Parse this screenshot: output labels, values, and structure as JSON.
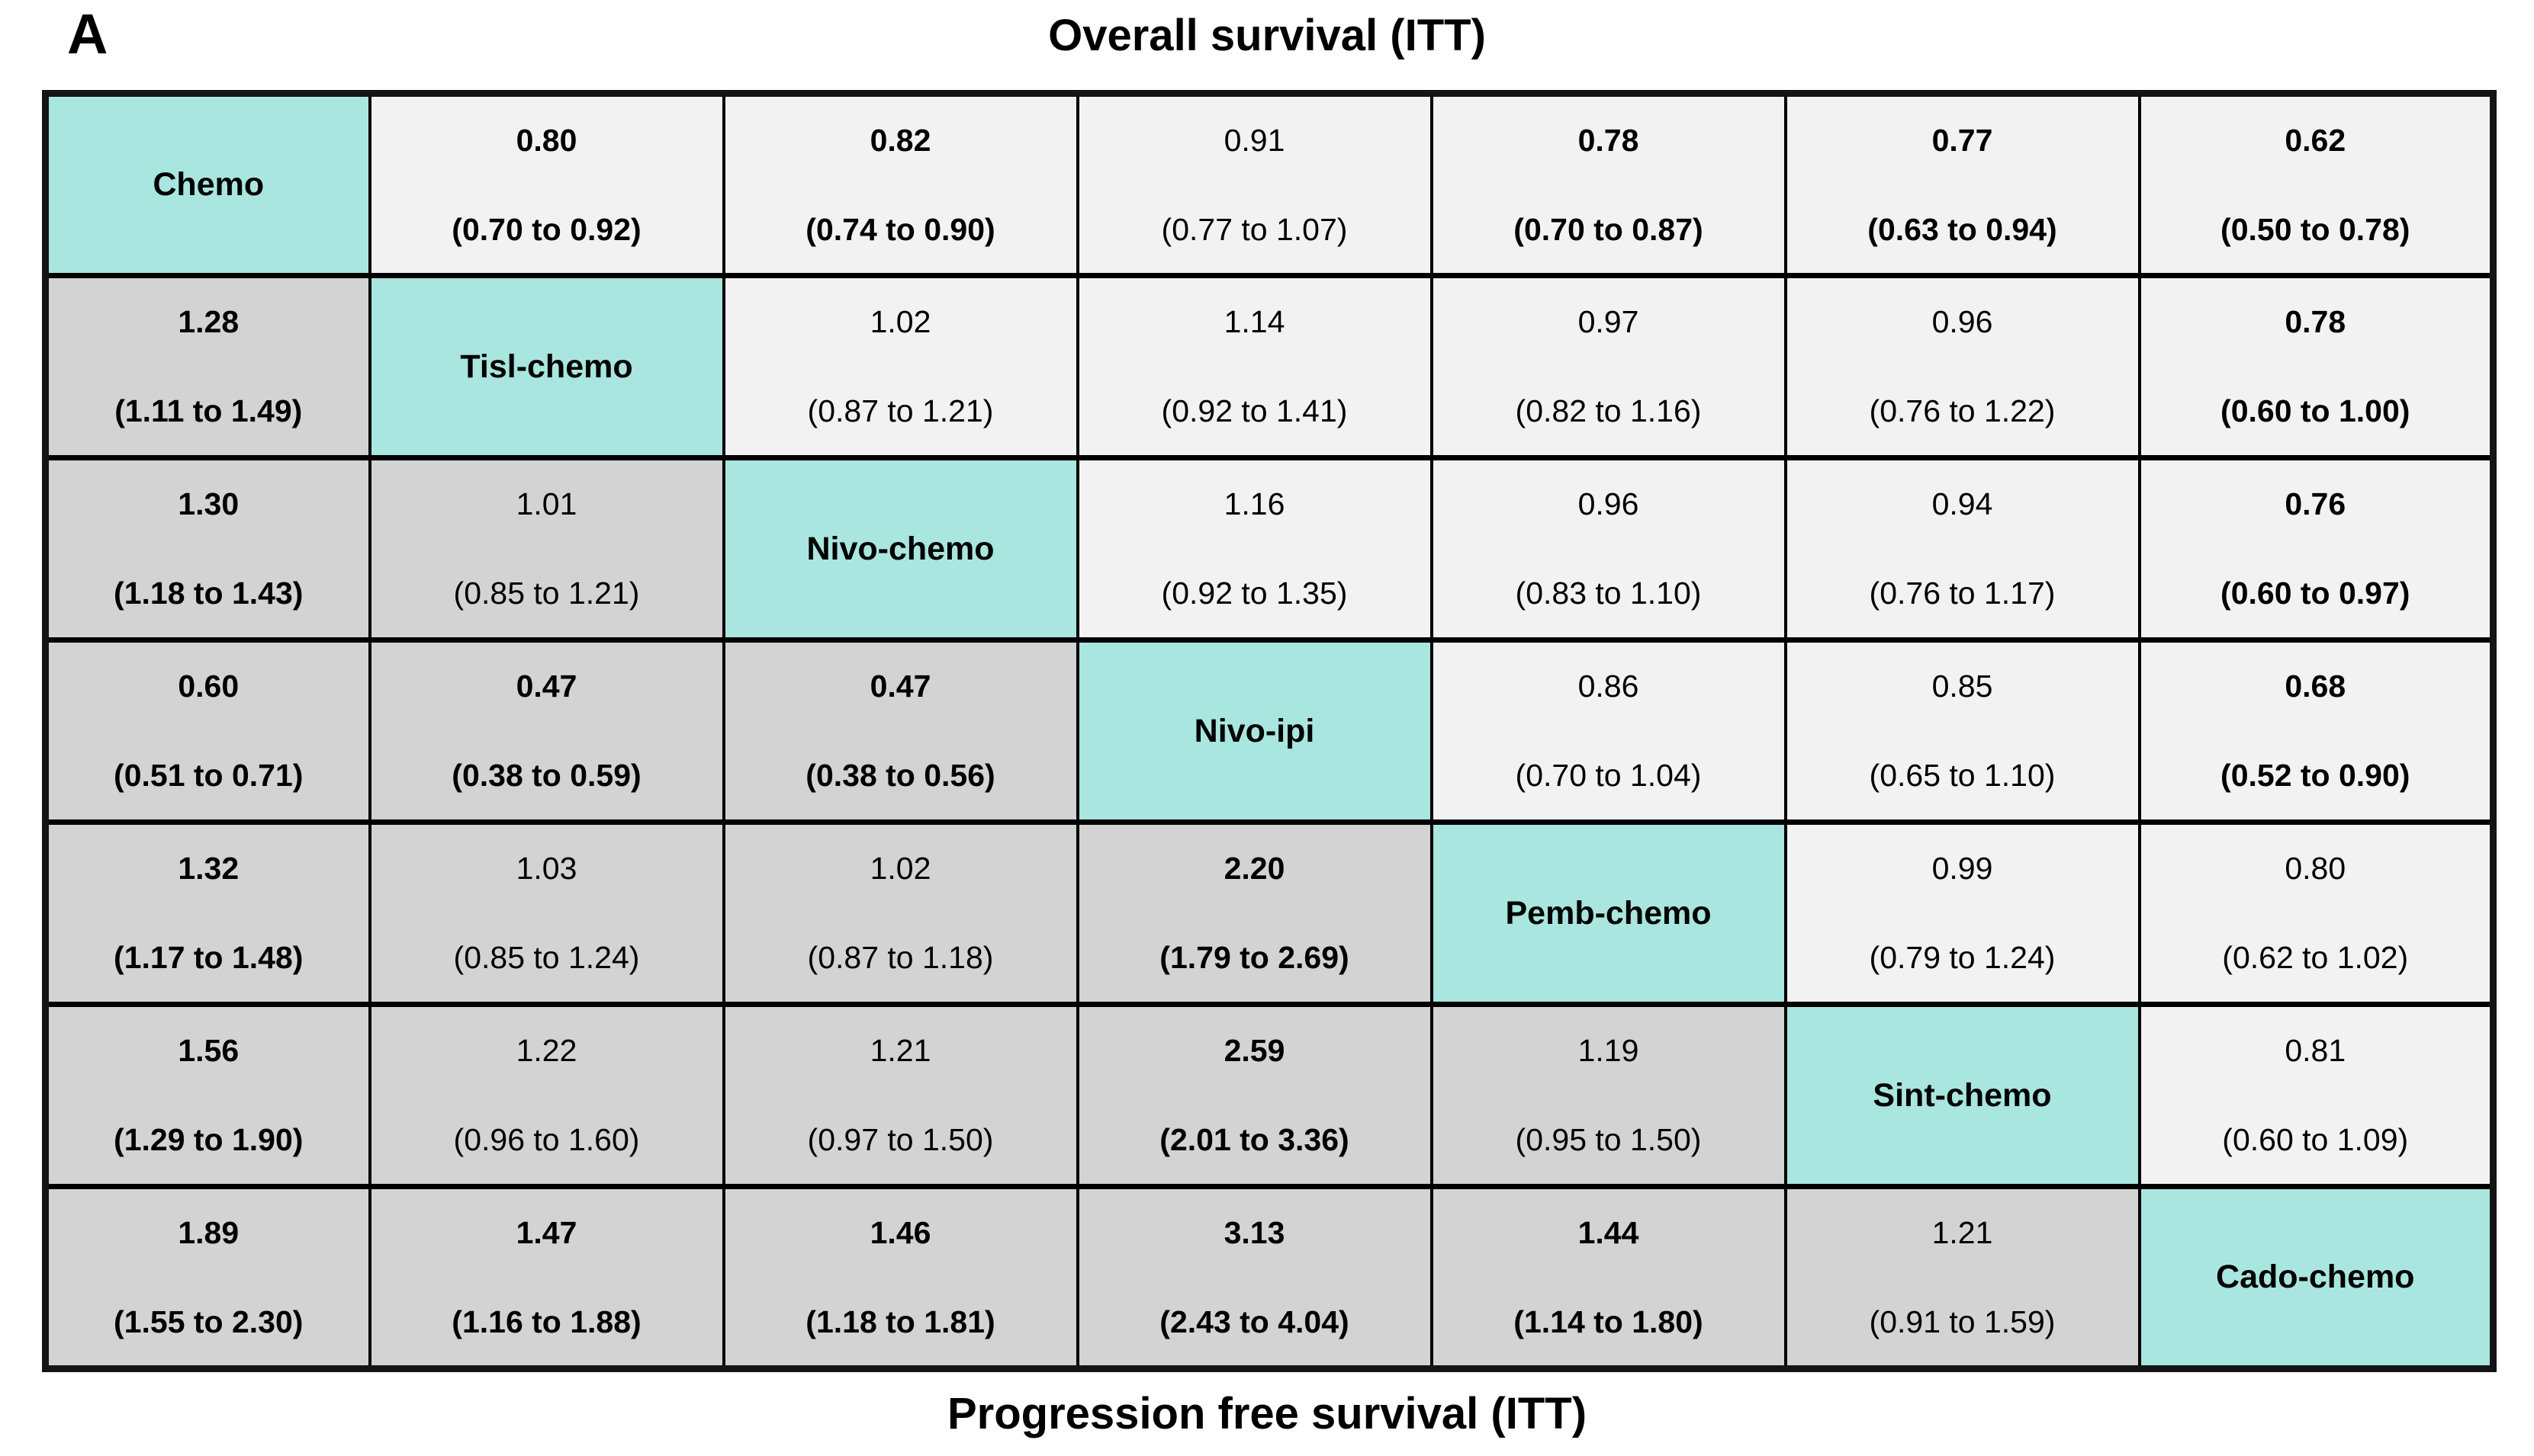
{
  "panel_label": "A",
  "titles": {
    "top": "Overall survival (ITT)",
    "bottom": "Progression free survival (ITT)"
  },
  "colors": {
    "diagonal_fill": "#a8e6df",
    "upper_triangle_fill": "#f2f2f2",
    "lower_triangle_fill": "#d3d3d3",
    "border": "#000000"
  },
  "chart_data": {
    "type": "table",
    "title": "Overall survival (ITT)",
    "upper_triangle_label": "Overall survival (ITT)",
    "lower_triangle_label": "Progression free survival (ITT)",
    "treatments": [
      "Chemo",
      "Tisl-chemo",
      "Nivo-chemo",
      "Nivo-ipi",
      "Pemb-chemo",
      "Sint-chemo",
      "Cado-chemo"
    ],
    "matrix": [
      [
        {
          "treatment": "Chemo"
        },
        {
          "hr": "0.80",
          "ci": "(0.70 to 0.92)",
          "significant": true
        },
        {
          "hr": "0.82",
          "ci": "(0.74 to 0.90)",
          "significant": true
        },
        {
          "hr": "0.91",
          "ci": "(0.77 to 1.07)",
          "significant": false
        },
        {
          "hr": "0.78",
          "ci": "(0.70 to 0.87)",
          "significant": true
        },
        {
          "hr": "0.77",
          "ci": "(0.63 to 0.94)",
          "significant": true
        },
        {
          "hr": "0.62",
          "ci": "(0.50 to 0.78)",
          "significant": true
        }
      ],
      [
        {
          "hr": "1.28",
          "ci": "(1.11 to 1.49)",
          "significant": true
        },
        {
          "treatment": "Tisl-chemo"
        },
        {
          "hr": "1.02",
          "ci": "(0.87 to 1.21)",
          "significant": false
        },
        {
          "hr": "1.14",
          "ci": "(0.92 to 1.41)",
          "significant": false
        },
        {
          "hr": "0.97",
          "ci": "(0.82 to 1.16)",
          "significant": false
        },
        {
          "hr": "0.96",
          "ci": "(0.76 to 1.22)",
          "significant": false
        },
        {
          "hr": "0.78",
          "ci": "(0.60 to 1.00)",
          "significant": true
        }
      ],
      [
        {
          "hr": "1.30",
          "ci": "(1.18 to 1.43)",
          "significant": true
        },
        {
          "hr": "1.01",
          "ci": "(0.85 to 1.21)",
          "significant": false
        },
        {
          "treatment": "Nivo-chemo"
        },
        {
          "hr": "1.16",
          "ci": "(0.92 to 1.35)",
          "significant": false
        },
        {
          "hr": "0.96",
          "ci": "(0.83 to 1.10)",
          "significant": false
        },
        {
          "hr": "0.94",
          "ci": "(0.76 to 1.17)",
          "significant": false
        },
        {
          "hr": "0.76",
          "ci": "(0.60 to 0.97)",
          "significant": true
        }
      ],
      [
        {
          "hr": "0.60",
          "ci": "(0.51 to 0.71)",
          "significant": true
        },
        {
          "hr": "0.47",
          "ci": "(0.38 to 0.59)",
          "significant": true
        },
        {
          "hr": "0.47",
          "ci": "(0.38 to 0.56)",
          "significant": true
        },
        {
          "treatment": "Nivo-ipi"
        },
        {
          "hr": "0.86",
          "ci": "(0.70 to 1.04)",
          "significant": false
        },
        {
          "hr": "0.85",
          "ci": "(0.65 to 1.10)",
          "significant": false
        },
        {
          "hr": "0.68",
          "ci": "(0.52 to 0.90)",
          "significant": true
        }
      ],
      [
        {
          "hr": "1.32",
          "ci": "(1.17 to 1.48)",
          "significant": true
        },
        {
          "hr": "1.03",
          "ci": "(0.85 to 1.24)",
          "significant": false
        },
        {
          "hr": "1.02",
          "ci": "(0.87 to 1.18)",
          "significant": false
        },
        {
          "hr": "2.20",
          "ci": "(1.79 to 2.69)",
          "significant": true
        },
        {
          "treatment": "Pemb-chemo"
        },
        {
          "hr": "0.99",
          "ci": "(0.79 to 1.24)",
          "significant": false
        },
        {
          "hr": "0.80",
          "ci": "(0.62 to 1.02)",
          "significant": false
        }
      ],
      [
        {
          "hr": "1.56",
          "ci": "(1.29 to 1.90)",
          "significant": true
        },
        {
          "hr": "1.22",
          "ci": "(0.96 to 1.60)",
          "significant": false
        },
        {
          "hr": "1.21",
          "ci": "(0.97 to 1.50)",
          "significant": false
        },
        {
          "hr": "2.59",
          "ci": "(2.01 to 3.36)",
          "significant": true
        },
        {
          "hr": "1.19",
          "ci": "(0.95 to 1.50)",
          "significant": false
        },
        {
          "treatment": "Sint-chemo"
        },
        {
          "hr": "0.81",
          "ci": "(0.60 to 1.09)",
          "significant": false
        }
      ],
      [
        {
          "hr": "1.89",
          "ci": "(1.55 to 2.30)",
          "significant": true
        },
        {
          "hr": "1.47",
          "ci": "(1.16 to 1.88)",
          "significant": true
        },
        {
          "hr": "1.46",
          "ci": "(1.18 to 1.81)",
          "significant": true
        },
        {
          "hr": "3.13",
          "ci": "(2.43 to 4.04)",
          "significant": true
        },
        {
          "hr": "1.44",
          "ci": "(1.14 to 1.80)",
          "significant": true
        },
        {
          "hr": "1.21",
          "ci": "(0.91 to 1.59)",
          "significant": false
        },
        {
          "treatment": "Cado-chemo"
        }
      ]
    ]
  }
}
